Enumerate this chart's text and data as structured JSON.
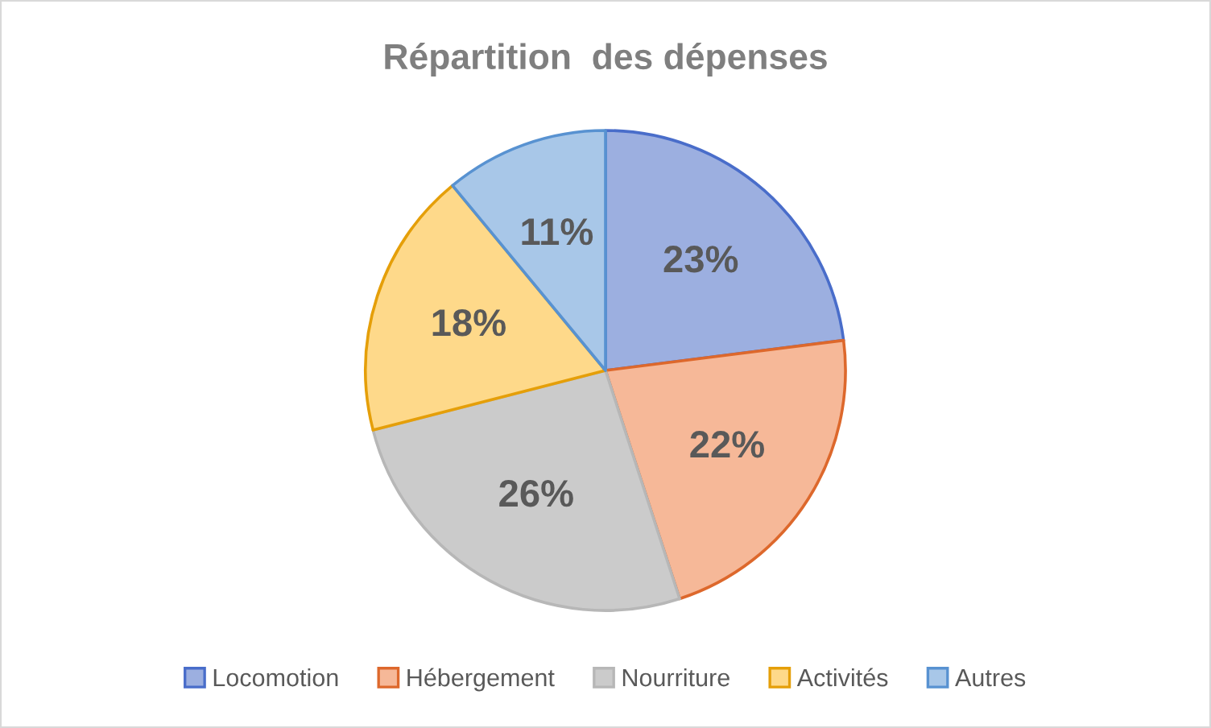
{
  "chart_data": {
    "type": "pie",
    "title": "Répartition  des dépenses",
    "categories": [
      "Locomotion",
      "Hébergement",
      "Nourriture",
      "Activités",
      "Autres"
    ],
    "values": [
      23,
      22,
      26,
      18,
      11
    ],
    "colors": [
      "#9cafe0",
      "#f6b898",
      "#cbcbcb",
      "#fed98a",
      "#a8c7e8"
    ],
    "value_labels": [
      "23%",
      "22%",
      "26%",
      "18%",
      "11%"
    ],
    "legend": "bottom"
  }
}
